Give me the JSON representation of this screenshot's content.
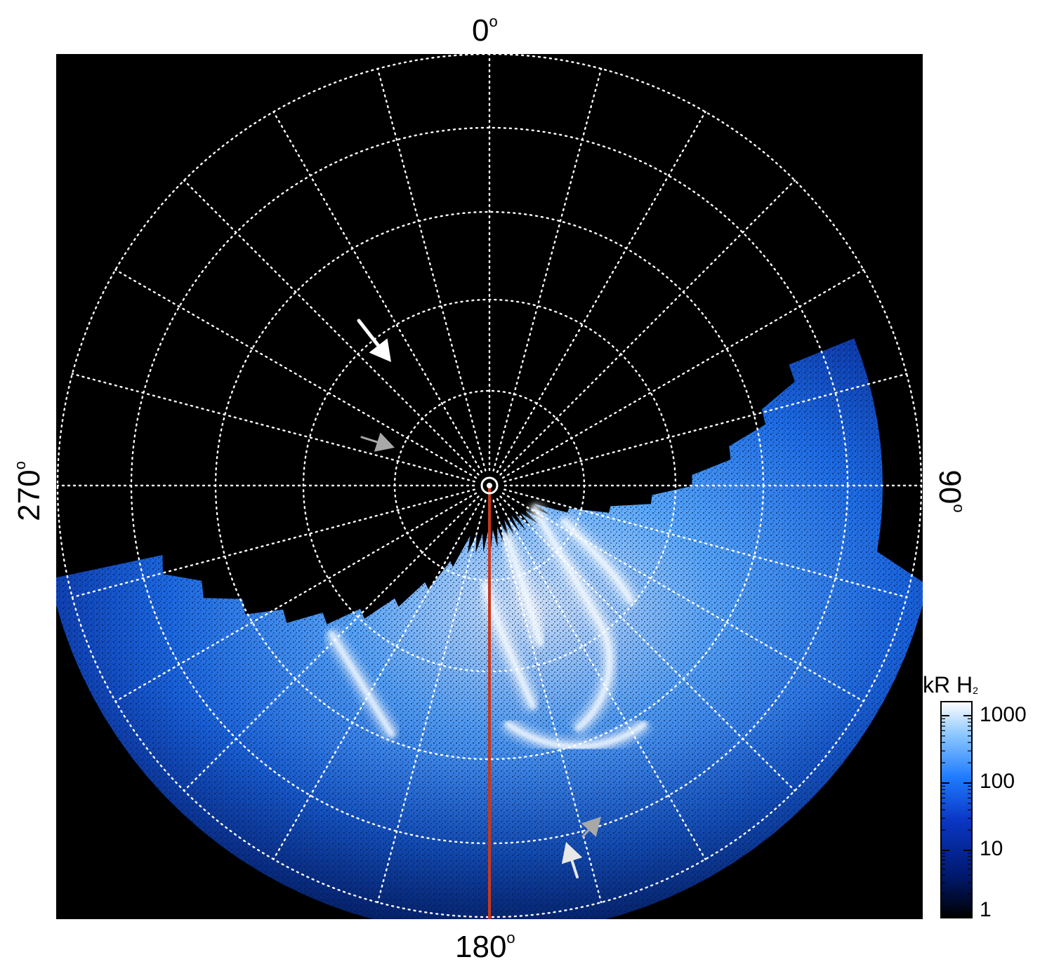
{
  "figure": {
    "type": "polar projection auroral image",
    "longitude_labels": {
      "top": "0",
      "right": "90",
      "bottom": "180",
      "left": "270",
      "degree_symbol": "o"
    },
    "colorbar": {
      "title_main": "kR H",
      "title_sub": "2",
      "scale": "log",
      "ticks": [
        "1000",
        "100",
        "10",
        "1"
      ],
      "colors": [
        "#ffffff",
        "#8ec8ff",
        "#1f7bff",
        "#0a36c4",
        "#001a70",
        "#000000"
      ]
    },
    "grid": {
      "style": "dotted",
      "color": "#ffffff",
      "meridians": 24,
      "parallels": 5
    },
    "reference_line": {
      "color": "#c8381c"
    },
    "annotation_arrows": [
      {
        "name": "white-arrow-upper",
        "color": "#ffffff"
      },
      {
        "name": "gray-arrow-upper",
        "color": "#a8a8a8"
      },
      {
        "name": "gray-arrow-lower",
        "color": "#a8a8a8"
      },
      {
        "name": "white-arrow-lower",
        "color": "#e8e8e8"
      }
    ]
  }
}
